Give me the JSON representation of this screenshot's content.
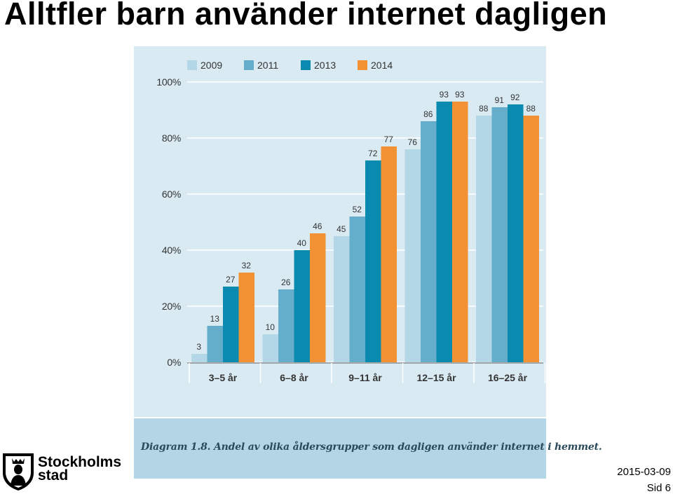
{
  "slide": {
    "title": "Alltfler barn använder internet dagligen",
    "caption": "Diagram 1.8. Andel av olika åldersgrupper som dagligen använder internet i hemmet.",
    "date": "2015-03-09",
    "page": "Sid 6"
  },
  "footer": {
    "org_line1": "Stockholms",
    "org_line2": "stad",
    "logo_icon": "stockholm-crest-icon"
  },
  "chart_data": {
    "type": "bar",
    "title": "",
    "xlabel": "",
    "ylabel": "",
    "ylim": [
      0,
      100
    ],
    "yticks": [
      "0%",
      "20%",
      "40%",
      "60%",
      "80%",
      "100%"
    ],
    "grid": true,
    "legend_position": "top",
    "categories": [
      "3–5 år",
      "6–8 år",
      "9–11 år",
      "12–15 år",
      "16–25 år"
    ],
    "series": [
      {
        "name": "2009",
        "color": "#b3d7e6",
        "values": [
          3,
          10,
          45,
          76,
          88
        ]
      },
      {
        "name": "2011",
        "color": "#64aecb",
        "values": [
          13,
          26,
          52,
          86,
          91
        ]
      },
      {
        "name": "2013",
        "color": "#0a8aae",
        "values": [
          27,
          40,
          72,
          93,
          92
        ]
      },
      {
        "name": "2014",
        "color": "#f39234",
        "values": [
          32,
          46,
          77,
          93,
          88
        ]
      }
    ]
  }
}
